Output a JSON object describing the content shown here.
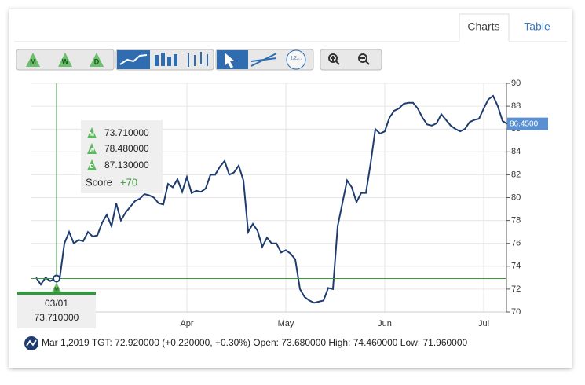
{
  "tabs": [
    "Charts",
    "Table"
  ],
  "toolbar": {
    "m": "M",
    "w": "W",
    "d": "D",
    "fib": "1,2,..."
  },
  "tooltip": {
    "m": "73.710000",
    "w": "78.480000",
    "d": "87.130000",
    "score_label": "Score",
    "score": "+70"
  },
  "crosshair": {
    "date": "03/01",
    "value": "73.710000"
  },
  "info": "Mar 1,2019 TGT: 72.920000 (+0.220000, +0.30%) Open: 73.680000 High: 74.460000 Low: 71.960000",
  "chart_data": {
    "type": "line",
    "categories": [
      null,
      null,
      null,
      null,
      null,
      null,
      null,
      null,
      null,
      null,
      null,
      null,
      null,
      null,
      null,
      null,
      null,
      null,
      null,
      null,
      null,
      null,
      null,
      null,
      null,
      null,
      null,
      null,
      null,
      null,
      null,
      null,
      "Apr",
      null,
      null,
      null,
      null,
      null,
      null,
      null,
      null,
      null,
      null,
      null,
      null,
      null,
      null,
      null,
      null,
      null,
      null,
      null,
      null,
      "May",
      null,
      null,
      null,
      null,
      null,
      null,
      null,
      null,
      null,
      null,
      null,
      null,
      null,
      null,
      null,
      null,
      null,
      null,
      null,
      null,
      "Jun",
      null,
      null,
      null,
      null,
      null,
      null,
      null,
      null,
      null,
      null,
      null,
      null,
      null,
      null,
      null,
      null,
      null,
      null,
      null,
      null,
      "Jul",
      null,
      null,
      null,
      null,
      null
    ],
    "series": [
      {
        "name": "TGT",
        "color": "#1f3c6e",
        "values": [
          73.0,
          72.4,
          73.0,
          72.7,
          72.92,
          72.9,
          76.0,
          77.0,
          76.0,
          76.3,
          76.2,
          77.0,
          76.6,
          76.7,
          77.8,
          78.5,
          77.5,
          79.5,
          78.0,
          78.7,
          79.2,
          79.7,
          79.9,
          80.3,
          80.2,
          80.0,
          79.5,
          79.4,
          81.2,
          80.9,
          81.6,
          80.5,
          81.8,
          80.4,
          80.6,
          80.5,
          80.8,
          82.0,
          82.0,
          82.7,
          83.2,
          82.0,
          82.2,
          82.8,
          81.5,
          77.0,
          77.7,
          77.1,
          75.7,
          76.5,
          76.0,
          76.0,
          75.2,
          75.4,
          75.1,
          74.6,
          72.0,
          71.3,
          71.0,
          70.8,
          70.9,
          71.0,
          72.1,
          72.0,
          77.5,
          79.5,
          81.5,
          80.9,
          79.6,
          80.4,
          80.4,
          83.0,
          86.0,
          85.6,
          85.8,
          87.0,
          87.6,
          87.8,
          88.2,
          88.3,
          88.3,
          87.8,
          87.0,
          86.4,
          86.3,
          86.5,
          87.3,
          86.8,
          86.3,
          86.0,
          85.8,
          86.0,
          86.6,
          86.8,
          86.9,
          87.8,
          88.6,
          88.9,
          88.0,
          86.7,
          86.45
        ]
      }
    ],
    "last_price": {
      "value": 86.45,
      "label": "86.4500"
    },
    "crosshair_index": 4,
    "ylim": [
      70,
      90
    ],
    "yticks": [
      70,
      72,
      74,
      76,
      78,
      80,
      82,
      84,
      86,
      88,
      90
    ],
    "grid": true,
    "crosshair_color": "#3a9a3a",
    "tag_color": "#5a8fd0"
  }
}
